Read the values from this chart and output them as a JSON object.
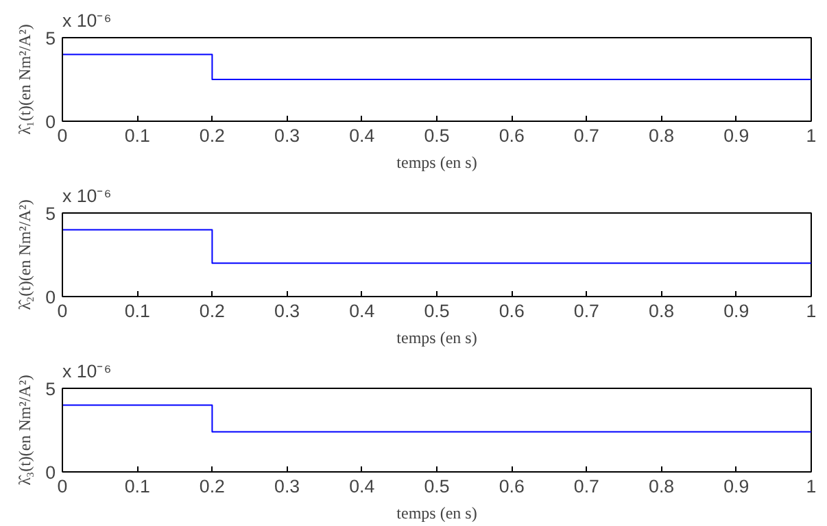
{
  "chart_data": [
    {
      "type": "line",
      "x": [
        0,
        0.2,
        0.2,
        0.4,
        0.6,
        0.8,
        1
      ],
      "series": [
        {
          "color": "#0000ff",
          "values": [
            4,
            4,
            2.5,
            2.5,
            2.5,
            2.5,
            2.5
          ]
        }
      ],
      "xlim": [
        0,
        1
      ],
      "ylim": [
        0,
        5
      ],
      "xticks": [
        0,
        0.1,
        0.2,
        0.3,
        0.4,
        0.5,
        0.6,
        0.7,
        0.8,
        0.9,
        1
      ],
      "yticks": [
        0,
        5
      ],
      "xlabel": "temps (en s)",
      "ylabel": "λ̂₁(t)(en Nm²/A²)",
      "annotations": [
        "x 10⁻⁶"
      ],
      "grid": false
    },
    {
      "type": "line",
      "x": [
        0,
        0.2,
        0.2,
        0.4,
        0.6,
        0.8,
        1
      ],
      "series": [
        {
          "color": "#0000ff",
          "values": [
            4,
            4,
            2,
            2,
            2,
            2,
            2
          ]
        }
      ],
      "xlim": [
        0,
        1
      ],
      "ylim": [
        0,
        5
      ],
      "xticks": [
        0,
        0.1,
        0.2,
        0.3,
        0.4,
        0.5,
        0.6,
        0.7,
        0.8,
        0.9,
        1
      ],
      "yticks": [
        0,
        5
      ],
      "xlabel": "temps (en s)",
      "ylabel": "λ̂₂(t)(en Nm²/A²)",
      "annotations": [
        "x 10⁻⁶"
      ],
      "grid": false
    },
    {
      "type": "line",
      "x": [
        0,
        0.2,
        0.2,
        0.4,
        0.6,
        0.8,
        1
      ],
      "series": [
        {
          "color": "#0000ff",
          "values": [
            4,
            4,
            2.4,
            2.4,
            2.4,
            2.4,
            2.4
          ]
        }
      ],
      "xlim": [
        0,
        1
      ],
      "ylim": [
        0,
        5
      ],
      "xticks": [
        0,
        0.1,
        0.2,
        0.3,
        0.4,
        0.5,
        0.6,
        0.7,
        0.8,
        0.9,
        1
      ],
      "yticks": [
        0,
        5
      ],
      "xlabel": "temps (en s)",
      "ylabel": "λ̂₃(t)(en Nm²/A²)",
      "annotations": [
        "x 10⁻⁶"
      ],
      "grid": false
    }
  ]
}
